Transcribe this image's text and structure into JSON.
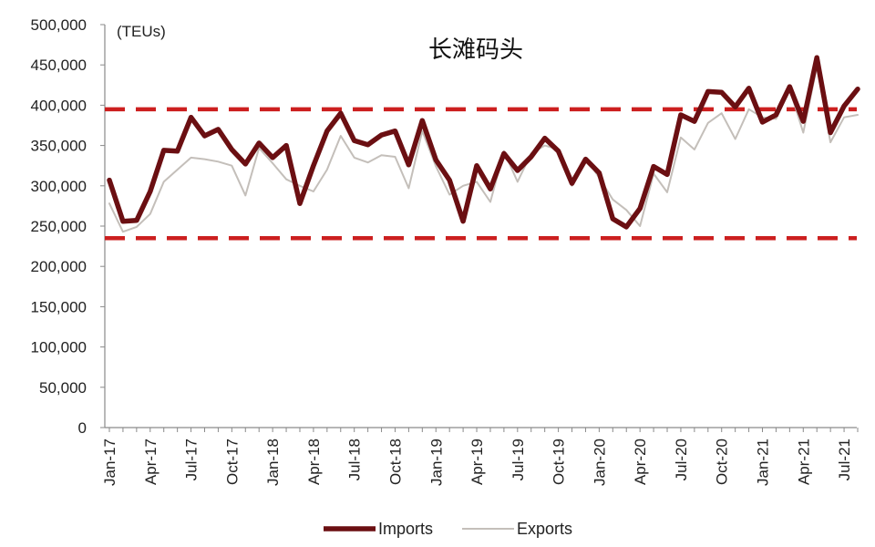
{
  "chart_data": {
    "type": "line",
    "title": "长滩码头",
    "ylabel": "(TEUs)",
    "xlabel": "",
    "ylim": [
      0,
      500000
    ],
    "y_ticks": [
      0,
      50000,
      100000,
      150000,
      200000,
      250000,
      300000,
      350000,
      400000,
      450000,
      500000
    ],
    "y_tick_labels": [
      "0",
      "50,000",
      "100,000",
      "150,000",
      "200,000",
      "250,000",
      "300,000",
      "350,000",
      "400,000",
      "450,000",
      "500,000"
    ],
    "x_tick_labels": [
      "Jan-17",
      "Apr-17",
      "Jul-17",
      "Oct-17",
      "Jan-18",
      "Apr-18",
      "Jul-18",
      "Oct-18",
      "Jan-19",
      "Apr-19",
      "Jul-19",
      "Oct-19",
      "Jan-20",
      "Apr-20",
      "Jul-20",
      "Oct-20",
      "Jan-21",
      "Apr-21",
      "Jul-21"
    ],
    "x_tick_every": 3,
    "reference_lines": [
      {
        "y": 395000,
        "style": "dashed",
        "color": "#cc1f1f"
      },
      {
        "y": 235000,
        "style": "dashed",
        "color": "#cc1f1f"
      }
    ],
    "legend_position": "bottom",
    "series": [
      {
        "name": "Imports",
        "color": "#6b0f12",
        "values": [
          307000,
          256000,
          257000,
          293000,
          344000,
          343000,
          385000,
          362000,
          370000,
          345000,
          327000,
          353000,
          335000,
          350000,
          278000,
          325000,
          368000,
          390000,
          356000,
          351000,
          363000,
          368000,
          326000,
          381000,
          332000,
          307000,
          256000,
          325000,
          296000,
          340000,
          319000,
          336000,
          359000,
          343000,
          303000,
          333000,
          316000,
          259000,
          249000,
          272000,
          324000,
          314000,
          388000,
          380000,
          417000,
          416000,
          398000,
          421000,
          379000,
          388000,
          423000,
          380000,
          459000,
          366000,
          399000,
          420000
        ]
      },
      {
        "name": "Exports",
        "color": "#c4bfba",
        "values": [
          278000,
          243000,
          249000,
          265000,
          305000,
          320000,
          335000,
          333000,
          330000,
          325000,
          288000,
          347000,
          328000,
          308000,
          300000,
          293000,
          320000,
          362000,
          335000,
          329000,
          338000,
          336000,
          297000,
          368000,
          324000,
          289000,
          300000,
          305000,
          280000,
          343000,
          305000,
          340000,
          350000,
          345000,
          300000,
          335000,
          310000,
          283000,
          270000,
          250000,
          315000,
          292000,
          360000,
          345000,
          378000,
          390000,
          358000,
          395000,
          385000,
          383000,
          420000,
          366000,
          448000,
          354000,
          385000,
          388000
        ]
      }
    ]
  }
}
